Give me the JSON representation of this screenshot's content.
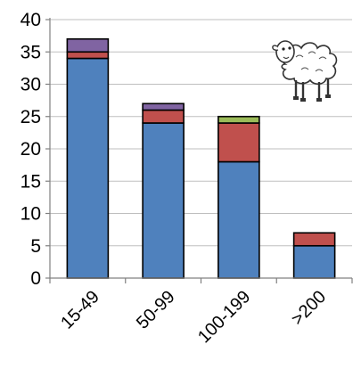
{
  "chart_data": {
    "type": "bar",
    "stacked": true,
    "title": "",
    "xlabel": "",
    "ylabel": "",
    "categories": [
      "15-49",
      "50-99",
      "100-199",
      ">200"
    ],
    "series": [
      {
        "values": [
          34,
          24,
          18,
          5
        ],
        "color": "#4f81bd"
      },
      {
        "values": [
          1,
          2,
          6,
          2
        ],
        "color": "#c0504d"
      },
      {
        "values": [
          0,
          0,
          1,
          0
        ],
        "color": "#9bbb59"
      },
      {
        "values": [
          2,
          1,
          0,
          0
        ],
        "color": "#8064a2"
      }
    ],
    "ylim": [
      0,
      40
    ],
    "yticks": [
      "0",
      "5",
      "10",
      "15",
      "20",
      "25",
      "30",
      "35",
      "40"
    ],
    "grid": true,
    "legend": "none"
  },
  "decoration": {
    "icon": "sheep-icon"
  }
}
